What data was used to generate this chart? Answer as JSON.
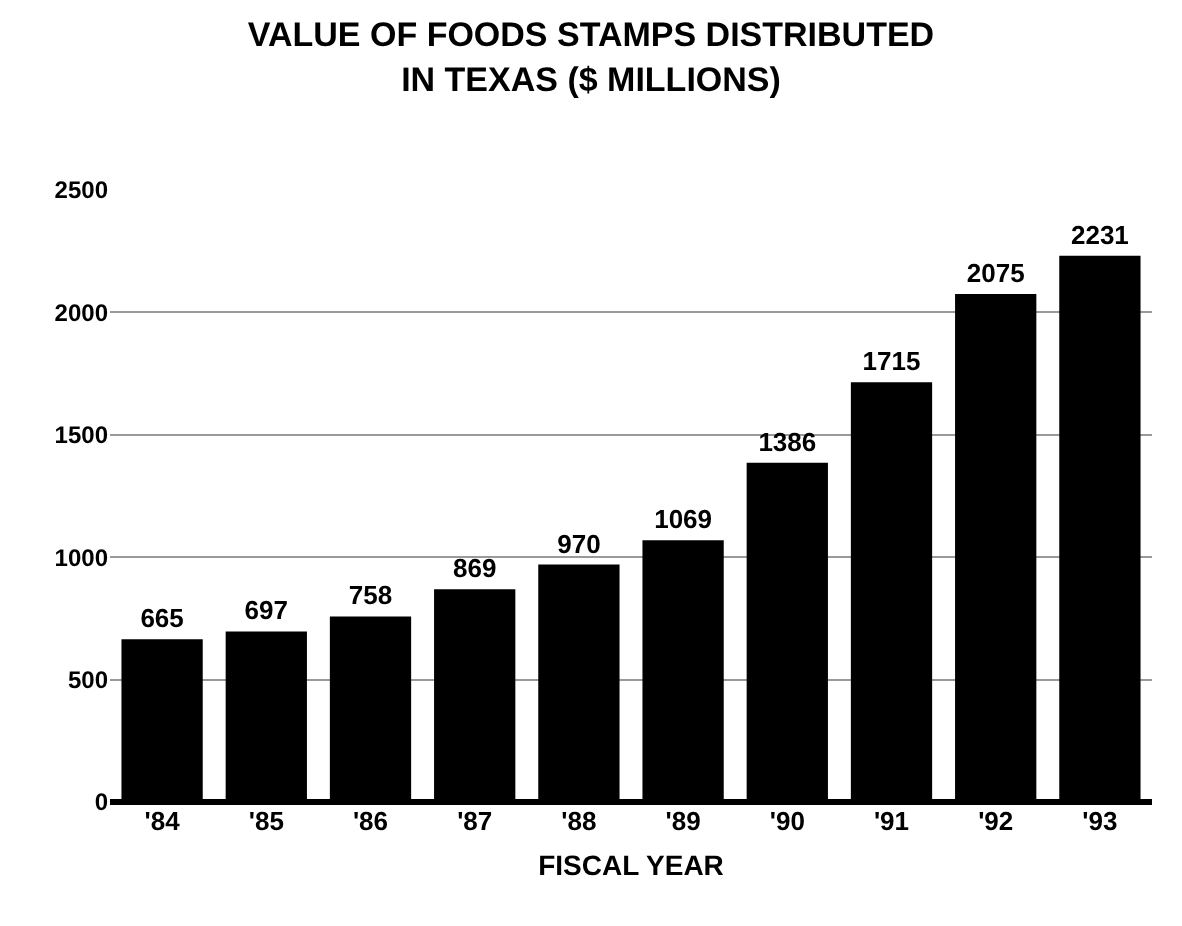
{
  "chart_data": {
    "type": "bar",
    "title": "VALUE OF FOODS STAMPS DISTRIBUTED\nIN TEXAS ($ MILLIONS)",
    "xlabel": "FISCAL YEAR",
    "categories": [
      "'84",
      "'85",
      "'86",
      "'87",
      "'88",
      "'89",
      "'90",
      "'91",
      "'92",
      "'93"
    ],
    "values": [
      665,
      697,
      758,
      869,
      970,
      1069,
      1386,
      1715,
      2075,
      2231
    ],
    "color": "#000000",
    "data_labels": true,
    "grid": "y",
    "ylim": [
      0,
      2500
    ],
    "yticks": [
      0,
      500,
      1000,
      1500,
      2000,
      2500
    ]
  }
}
